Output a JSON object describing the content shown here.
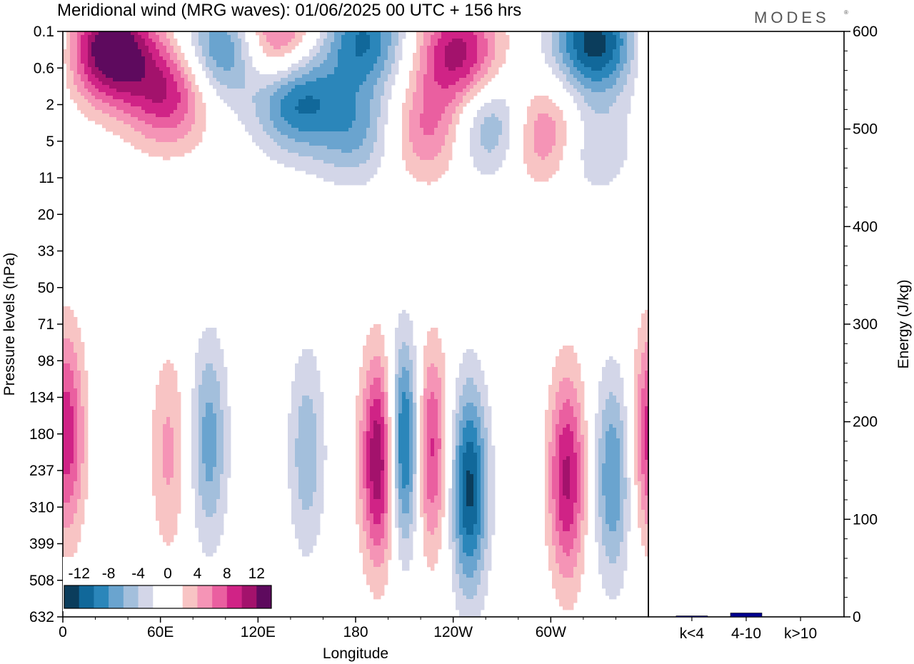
{
  "title": "Meridional wind (MRG waves):  01/06/2025  00 UTC  + 156 hrs",
  "logo": "MODES",
  "chart_data": [
    {
      "type": "heatmap",
      "xlabel": "Longitude",
      "ylabel": "Pressure levels (hPa)",
      "x_tick_labels": [
        "0",
        "60E",
        "120E",
        "180",
        "120W",
        "60W"
      ],
      "x_tick_degrees": [
        0,
        60,
        120,
        180,
        240,
        300
      ],
      "xlim": [
        0,
        360
      ],
      "y_tick_labels": [
        "0.1",
        "0.6",
        "2",
        "5",
        "11",
        "20",
        "33",
        "50",
        "71",
        "98",
        "134",
        "180",
        "237",
        "310",
        "399",
        "508",
        "632"
      ],
      "y_scale": "model levels, pressure increasing downward",
      "colorbar": {
        "tick_labels": [
          "-12",
          "-8",
          "-4",
          "0",
          "4",
          "8",
          "12"
        ],
        "levels": [
          -14,
          -12,
          -10,
          -8,
          -6,
          -4,
          -2,
          0,
          2,
          4,
          6,
          8,
          10,
          12,
          14
        ],
        "colors": [
          "#0b3d5c",
          "#11689a",
          "#2b86ba",
          "#6aa4cf",
          "#a3bfdc",
          "#d3d6e8",
          "#ffffff",
          "#ffffff",
          "#f8c4c4",
          "#f594b6",
          "#ea5fa0",
          "#d02386",
          "#a3126c",
          "#5e0a5e"
        ]
      },
      "features": [
        {
          "kind": "negative",
          "lon": 210,
          "lev": 11.3,
          "amp": 14
        },
        {
          "kind": "positive",
          "lon": 195,
          "lev": 11.7,
          "amp": 13.5
        },
        {
          "kind": "positive",
          "lon": 225,
          "lev": 11.4,
          "amp": 10
        },
        {
          "kind": "negative",
          "lon": 250,
          "lev": 12.5,
          "amp": 12.5
        },
        {
          "kind": "positive",
          "lon": 310,
          "lev": 12.2,
          "amp": 10.5
        },
        {
          "kind": "negative",
          "lon": 338,
          "lev": 12.2,
          "amp": 8
        },
        {
          "kind": "positive",
          "lon": 2,
          "lev": 11.0,
          "amp": 9.5
        },
        {
          "kind": "negative",
          "lon": 90,
          "lev": 11.2,
          "amp": 7
        },
        {
          "kind": "negative",
          "lon": 150,
          "lev": 11.5,
          "amp": 5.5
        },
        {
          "kind": "positive",
          "lon": 65,
          "lev": 11.5,
          "amp": 4.5
        },
        {
          "kind": "positive",
          "lon": 30,
          "lev": 0.5,
          "amp": 15
        },
        {
          "kind": "negative",
          "lon": 100,
          "lev": 0.5,
          "amp": 10
        },
        {
          "kind": "positive",
          "lon": 130,
          "lev": 0.3,
          "amp": 10
        },
        {
          "kind": "negative",
          "lon": 185,
          "lev": 0.2,
          "amp": 10
        },
        {
          "kind": "positive",
          "lon": 243,
          "lev": 0.6,
          "amp": 11
        },
        {
          "kind": "negative",
          "lon": 327,
          "lev": 0.3,
          "amp": 13
        },
        {
          "kind": "positive",
          "lon": 65,
          "lev": 1.7,
          "amp": 9.5
        },
        {
          "kind": "negative",
          "lon": 143,
          "lev": 1.8,
          "amp": 11
        },
        {
          "kind": "positive",
          "lon": 295,
          "lev": 2.8,
          "amp": 8.5
        },
        {
          "kind": "negative",
          "lon": 265,
          "lev": 2.6,
          "amp": 8
        },
        {
          "kind": "negative",
          "lon": 180,
          "lev": 2.7,
          "amp": 6.5
        },
        {
          "kind": "positive",
          "lon": 225,
          "lev": 2.7,
          "amp": 6.5
        },
        {
          "kind": "negative",
          "lon": 323,
          "lev": 3.1,
          "amp": 5
        }
      ]
    },
    {
      "type": "bar",
      "categories": [
        "k<4",
        "4-10",
        "k>10"
      ],
      "values": [
        1,
        4,
        0
      ],
      "ylabel": "Energy (J/kg)",
      "ylim": [
        0,
        600
      ],
      "y_tick_labels": [
        "0",
        "100",
        "200",
        "300",
        "400",
        "500",
        "600"
      ],
      "y_tick_values": [
        0,
        100,
        200,
        300,
        400,
        500,
        600
      ],
      "bar_color": "#00008b"
    }
  ]
}
